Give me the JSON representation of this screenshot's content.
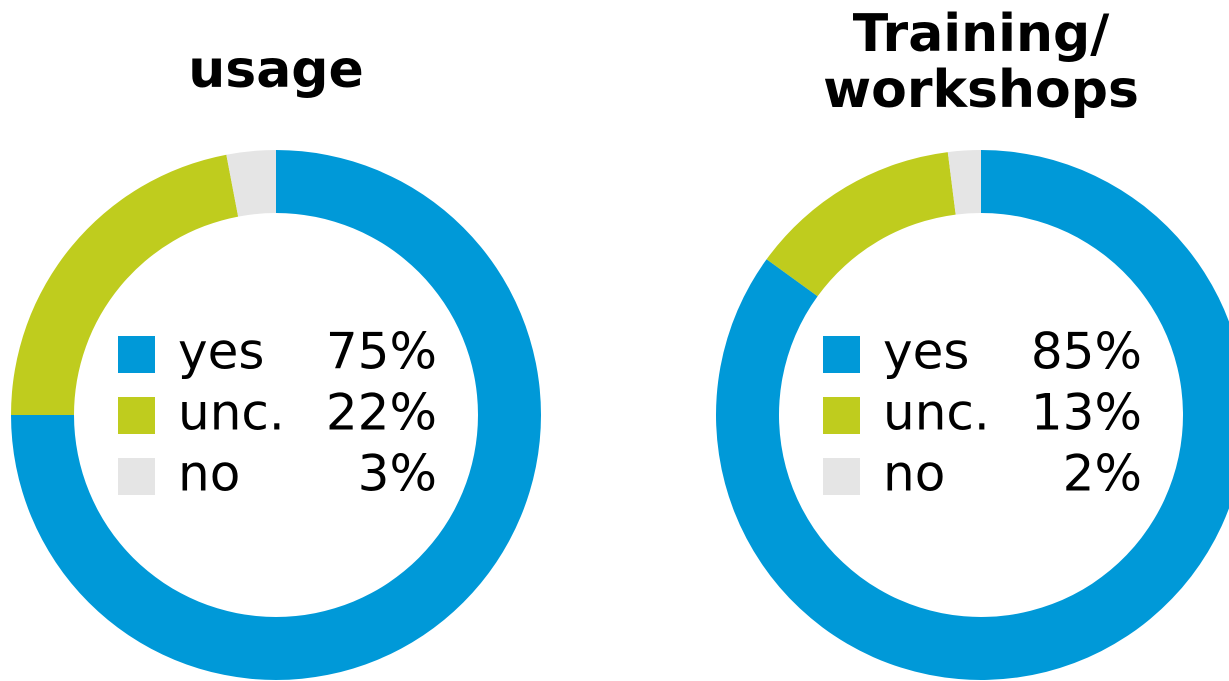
{
  "chart_data": [
    {
      "type": "pie",
      "title": "usage",
      "categories": [
        "yes",
        "unc.",
        "no"
      ],
      "values": [
        75,
        22,
        3
      ],
      "value_labels": [
        "75%",
        "22%",
        "3%"
      ],
      "colors": [
        "#0099d8",
        "#bfcc1e",
        "#e5e5e5"
      ]
    },
    {
      "type": "pie",
      "title": "Training/ workshops",
      "categories": [
        "yes",
        "unc.",
        "no"
      ],
      "values": [
        85,
        13,
        2
      ],
      "value_labels": [
        "85%",
        "13%",
        "2%"
      ],
      "colors": [
        "#0099d8",
        "#bfcc1e",
        "#e5e5e5"
      ]
    }
  ]
}
